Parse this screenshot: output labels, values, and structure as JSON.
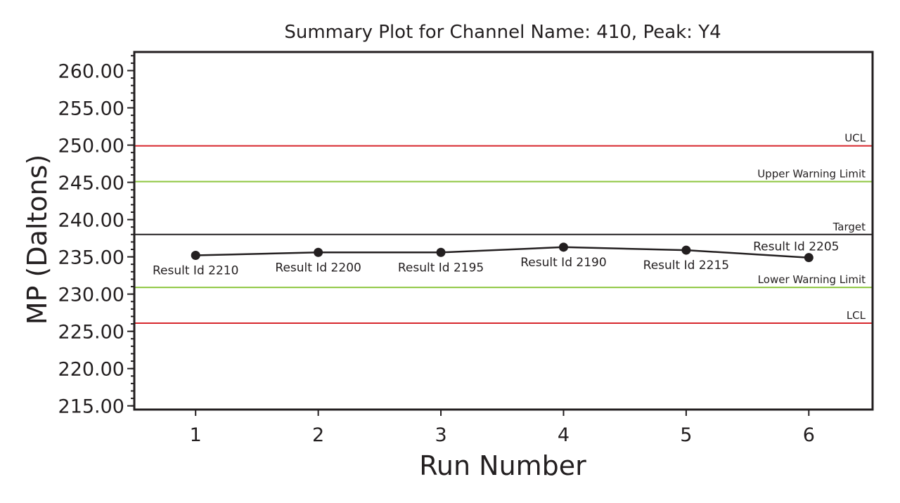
{
  "chart_data": {
    "type": "line",
    "title": "Summary Plot for Channel Name: 410, Peak: Y4",
    "xlabel": "Run Number",
    "ylabel": "MP (Daltons)",
    "xlim": [
      0.5,
      6.52
    ],
    "ylim": [
      214.5,
      262.5
    ],
    "x_ticks": [
      1,
      2,
      3,
      4,
      5,
      6
    ],
    "y_ticks": [
      "215.00",
      "220.00",
      "225.00",
      "230.00",
      "235.00",
      "240.00",
      "245.00",
      "250.00",
      "255.00",
      "260.00"
    ],
    "series": [
      {
        "x": [
          1,
          2,
          3,
          4,
          5,
          6
        ],
        "values": [
          235.2,
          235.6,
          235.6,
          236.3,
          235.9,
          234.9
        ],
        "point_labels": [
          "Result Id 2210",
          "Result Id 2200",
          "Result Id 2195",
          "Result Id 2190",
          "Result Id 2215",
          "Result Id 2205"
        ],
        "color": "#231f20"
      }
    ],
    "reference_lines": [
      {
        "label": "UCL",
        "value": 249.9,
        "color": "#d7262c"
      },
      {
        "label": "Upper Warning Limit",
        "value": 245.1,
        "color": "#8dc63f"
      },
      {
        "label": "Target",
        "value": 238.0,
        "color": "#231f20"
      },
      {
        "label": "Lower Warning Limit",
        "value": 230.9,
        "color": "#8dc63f"
      },
      {
        "label": "LCL",
        "value": 226.1,
        "color": "#d7262c"
      }
    ],
    "grid": false,
    "legend": "none"
  }
}
